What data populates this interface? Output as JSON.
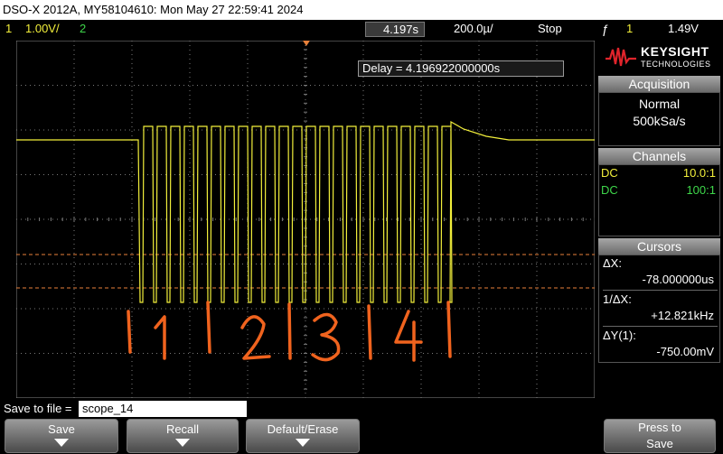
{
  "title": "DSO-X 2012A, MY58104610: Mon May 27 22:59:41 2024",
  "status": {
    "ch1_num": "1",
    "ch1_scale": "1.00V/",
    "ch2_num": "2",
    "time_pos": "4.197s",
    "time_scale": "200.0µ/",
    "run_state": "Stop",
    "trig_icon": "ƒ",
    "trig_src": "1",
    "trig_level": "1.49V"
  },
  "delay": "Delay = 4.196922000000s",
  "logo": {
    "brand": "KEYSIGHT",
    "sub": "TECHNOLOGIES"
  },
  "acquisition": {
    "header": "Acquisition",
    "mode": "Normal",
    "rate": "500kSa/s"
  },
  "channels": {
    "header": "Channels",
    "rows": [
      {
        "coupling": "DC",
        "probe": "10.0:1",
        "color": "#f2ef3b"
      },
      {
        "coupling": "DC",
        "probe": "100:1",
        "color": "#3ed64a"
      }
    ]
  },
  "cursors": {
    "header": "Cursors",
    "dx_label": "ΔX:",
    "dx_value": "-78.000000us",
    "inv_label": "1/ΔX:",
    "inv_value": "+12.821kHz",
    "dy_label": "ΔY(1):",
    "dy_value": "-750.00mV"
  },
  "save": {
    "label": "Save to file =",
    "filename": "scope_14"
  },
  "softkeys": [
    {
      "label": "Save"
    },
    {
      "label": "Recall"
    },
    {
      "label": "Default/Erase"
    },
    {
      "label": "Press to",
      "label2": "Save"
    }
  ],
  "annotation": {
    "text": "|1|2|3|4|",
    "color": "#f0631e"
  },
  "colors": {
    "ch1": "#f2ef3b",
    "ch2": "#3ed64a",
    "cursor": "#e8803a",
    "grid": "#7a7a7a"
  }
}
